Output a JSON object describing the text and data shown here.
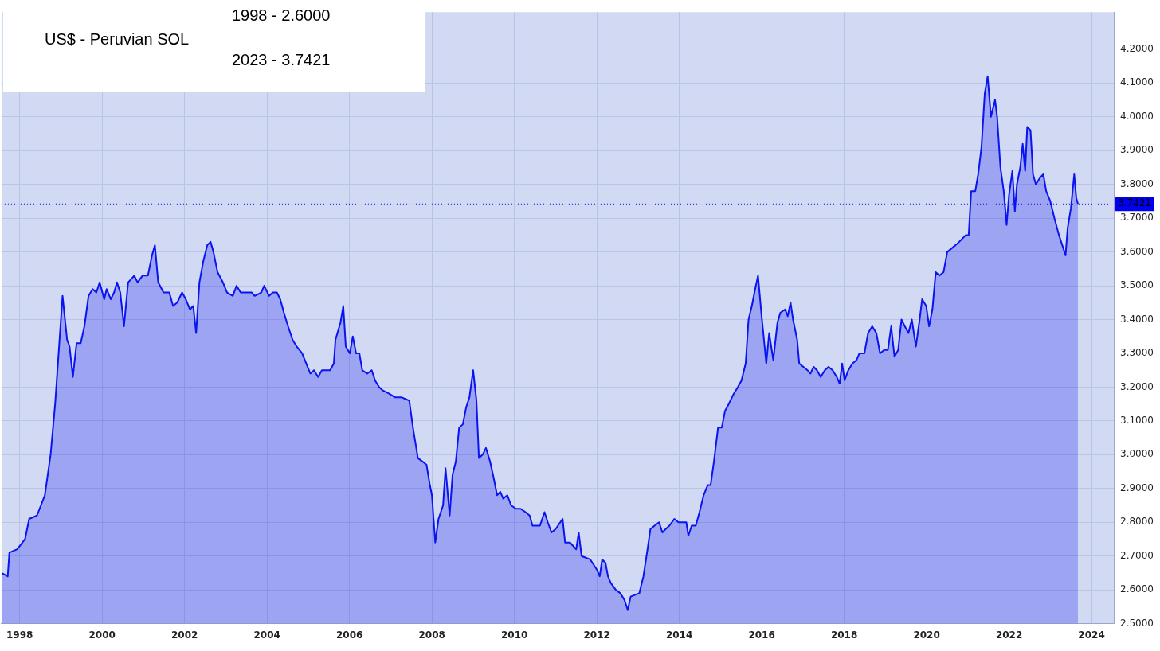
{
  "chart_data": {
    "type": "area",
    "title": "US$ - Peruvian SOL",
    "annotations": [
      "1998 - 2.6000",
      "2023 - 3.7421"
    ],
    "x": [
      1997.56,
      1997.71,
      1997.75,
      1997.94,
      1998.13,
      1998.23,
      1998.42,
      1998.61,
      1998.75,
      1998.86,
      1999.04,
      1999.15,
      1999.21,
      1999.29,
      1999.38,
      1999.48,
      1999.57,
      1999.67,
      1999.77,
      1999.86,
      1999.94,
      2000.05,
      2000.11,
      2000.21,
      2000.29,
      2000.36,
      2000.44,
      2000.53,
      2000.63,
      2000.78,
      2000.86,
      2000.98,
      2001.11,
      2001.21,
      2001.28,
      2001.36,
      2001.49,
      2001.63,
      2001.72,
      2001.82,
      2001.94,
      2002.03,
      2002.13,
      2002.21,
      2002.28,
      2002.36,
      2002.45,
      2002.55,
      2002.63,
      2002.7,
      2002.8,
      2002.93,
      2003.03,
      2003.17,
      2003.26,
      2003.36,
      2003.63,
      2003.7,
      2003.86,
      2003.93,
      2004.05,
      2004.14,
      2004.24,
      2004.32,
      2004.41,
      2004.51,
      2004.62,
      2004.72,
      2004.85,
      2004.95,
      2005.05,
      2005.14,
      2005.24,
      2005.33,
      2005.53,
      2005.62,
      2005.66,
      2005.78,
      2005.85,
      2005.91,
      2006.01,
      2006.08,
      2006.16,
      2006.24,
      2006.31,
      2006.43,
      2006.54,
      2006.62,
      2006.72,
      2006.81,
      2006.97,
      2007.1,
      2007.26,
      2007.45,
      2007.54,
      2007.66,
      2007.77,
      2007.87,
      2007.95,
      2008.0,
      2008.08,
      2008.16,
      2008.27,
      2008.33,
      2008.43,
      2008.5,
      2008.58,
      2008.66,
      2008.75,
      2008.83,
      2008.91,
      2009.0,
      2009.08,
      2009.14,
      2009.23,
      2009.31,
      2009.41,
      2009.5,
      2009.58,
      2009.66,
      2009.73,
      2009.83,
      2009.92,
      2010.04,
      2010.15,
      2010.27,
      2010.37,
      2010.44,
      2010.62,
      2010.73,
      2010.81,
      2010.9,
      2011.0,
      2011.17,
      2011.23,
      2011.35,
      2011.5,
      2011.56,
      2011.63,
      2011.84,
      2012.0,
      2012.07,
      2012.13,
      2012.21,
      2012.27,
      2012.34,
      2012.46,
      2012.57,
      2012.67,
      2012.75,
      2012.82,
      2013.03,
      2013.13,
      2013.23,
      2013.3,
      2013.4,
      2013.51,
      2013.59,
      2013.67,
      2013.76,
      2013.88,
      2013.98,
      2014.17,
      2014.22,
      2014.3,
      2014.4,
      2014.49,
      2014.59,
      2014.69,
      2014.76,
      2014.84,
      2014.94,
      2015.03,
      2015.11,
      2015.2,
      2015.32,
      2015.42,
      2015.51,
      2015.61,
      2015.68,
      2015.76,
      2015.84,
      2015.91,
      2015.99,
      2016.07,
      2016.11,
      2016.18,
      2016.28,
      2016.38,
      2016.45,
      2016.57,
      2016.63,
      2016.7,
      2016.76,
      2016.86,
      2016.91,
      2017.01,
      2017.11,
      2017.18,
      2017.26,
      2017.34,
      2017.43,
      2017.53,
      2017.62,
      2017.72,
      2017.82,
      2017.89,
      2017.95,
      2018.01,
      2018.1,
      2018.2,
      2018.3,
      2018.37,
      2018.49,
      2018.58,
      2018.68,
      2018.78,
      2018.87,
      2018.97,
      2019.06,
      2019.14,
      2019.22,
      2019.31,
      2019.39,
      2019.47,
      2019.56,
      2019.64,
      2019.74,
      2019.83,
      2019.89,
      2019.99,
      2020.06,
      2020.14,
      2020.22,
      2020.31,
      2020.41,
      2020.5,
      2020.6,
      2020.7,
      2020.79,
      2020.87,
      2020.95,
      2021.02,
      2021.08,
      2021.18,
      2021.25,
      2021.33,
      2021.41,
      2021.48,
      2021.56,
      2021.6,
      2021.66,
      2021.71,
      2021.79,
      2021.87,
      2021.94,
      2022.0,
      2022.08,
      2022.14,
      2022.19,
      2022.27,
      2022.33,
      2022.39,
      2022.44,
      2022.52,
      2022.58,
      2022.65,
      2022.75,
      2022.83,
      2022.9,
      2023.0,
      2023.1,
      2023.21,
      2023.29,
      2023.37,
      2023.42,
      2023.5,
      2023.58,
      2023.63,
      2023.67
    ],
    "series": [
      {
        "color": "#0a14f0",
        "values": [
          2.65,
          2.64,
          2.71,
          2.72,
          2.75,
          2.81,
          2.82,
          2.88,
          3.0,
          3.15,
          3.47,
          3.34,
          3.32,
          3.23,
          3.33,
          3.33,
          3.38,
          3.47,
          3.49,
          3.48,
          3.51,
          3.46,
          3.49,
          3.46,
          3.48,
          3.51,
          3.48,
          3.38,
          3.51,
          3.53,
          3.51,
          3.53,
          3.53,
          3.59,
          3.62,
          3.51,
          3.48,
          3.48,
          3.44,
          3.45,
          3.48,
          3.46,
          3.43,
          3.44,
          3.36,
          3.51,
          3.57,
          3.62,
          3.63,
          3.6,
          3.54,
          3.51,
          3.48,
          3.47,
          3.5,
          3.48,
          3.48,
          3.47,
          3.48,
          3.5,
          3.47,
          3.48,
          3.48,
          3.46,
          3.42,
          3.38,
          3.34,
          3.32,
          3.3,
          3.27,
          3.24,
          3.25,
          3.23,
          3.25,
          3.25,
          3.27,
          3.34,
          3.39,
          3.44,
          3.32,
          3.3,
          3.35,
          3.3,
          3.3,
          3.25,
          3.24,
          3.25,
          3.22,
          3.2,
          3.19,
          3.18,
          3.17,
          3.17,
          3.16,
          3.08,
          2.99,
          2.98,
          2.97,
          2.91,
          2.88,
          2.74,
          2.81,
          2.85,
          2.96,
          2.82,
          2.94,
          2.98,
          3.08,
          3.09,
          3.14,
          3.17,
          3.25,
          3.16,
          2.99,
          3.0,
          3.02,
          2.98,
          2.93,
          2.88,
          2.89,
          2.87,
          2.88,
          2.85,
          2.84,
          2.84,
          2.83,
          2.82,
          2.79,
          2.79,
          2.83,
          2.8,
          2.77,
          2.78,
          2.81,
          2.74,
          2.74,
          2.72,
          2.77,
          2.7,
          2.69,
          2.66,
          2.64,
          2.69,
          2.68,
          2.64,
          2.62,
          2.6,
          2.59,
          2.57,
          2.54,
          2.58,
          2.59,
          2.64,
          2.72,
          2.78,
          2.79,
          2.8,
          2.77,
          2.78,
          2.79,
          2.81,
          2.8,
          2.8,
          2.76,
          2.79,
          2.79,
          2.83,
          2.88,
          2.91,
          2.91,
          2.98,
          3.08,
          3.08,
          3.13,
          3.15,
          3.18,
          3.2,
          3.22,
          3.27,
          3.4,
          3.44,
          3.49,
          3.53,
          3.42,
          3.32,
          3.27,
          3.36,
          3.28,
          3.39,
          3.42,
          3.43,
          3.41,
          3.45,
          3.4,
          3.34,
          3.27,
          3.26,
          3.25,
          3.24,
          3.26,
          3.25,
          3.23,
          3.25,
          3.26,
          3.25,
          3.23,
          3.21,
          3.27,
          3.22,
          3.25,
          3.27,
          3.28,
          3.3,
          3.3,
          3.36,
          3.38,
          3.36,
          3.3,
          3.31,
          3.31,
          3.38,
          3.29,
          3.31,
          3.4,
          3.38,
          3.36,
          3.4,
          3.32,
          3.4,
          3.46,
          3.44,
          3.38,
          3.43,
          3.54,
          3.53,
          3.54,
          3.6,
          3.61,
          3.62,
          3.63,
          3.64,
          3.65,
          3.65,
          3.78,
          3.78,
          3.83,
          3.91,
          4.07,
          4.12,
          4.0,
          4.02,
          4.05,
          4.0,
          3.85,
          3.78,
          3.68,
          3.77,
          3.84,
          3.72,
          3.8,
          3.85,
          3.92,
          3.84,
          3.97,
          3.96,
          3.83,
          3.8,
          3.82,
          3.83,
          3.78,
          3.75,
          3.7,
          3.65,
          3.62,
          3.59,
          3.67,
          3.73,
          3.83,
          3.76,
          3.7421
        ]
      }
    ],
    "xlim": [
      1997.56,
      2024.54
    ],
    "xticks": [
      1998,
      2000,
      2002,
      2004,
      2006,
      2008,
      2010,
      2012,
      2014,
      2016,
      2018,
      2020,
      2022,
      2024
    ],
    "ylim": [
      2.5,
      4.31
    ],
    "yticks": [
      {
        "value": 2.5,
        "label": "2.5000"
      },
      {
        "value": 2.6,
        "label": "2.6000"
      },
      {
        "value": 2.7,
        "label": "2.7000"
      },
      {
        "value": 2.8,
        "label": "2.8000"
      },
      {
        "value": 2.9,
        "label": "2.9000"
      },
      {
        "value": 3.0,
        "label": "3.0000"
      },
      {
        "value": 3.1,
        "label": "3.1000"
      },
      {
        "value": 3.2,
        "label": "3.2000"
      },
      {
        "value": 3.3,
        "label": "3.3000"
      },
      {
        "value": 3.4,
        "label": "3.4000"
      },
      {
        "value": 3.5,
        "label": "3.5000"
      },
      {
        "value": 3.6,
        "label": "3.6000"
      },
      {
        "value": 3.7,
        "label": "3.7000"
      },
      {
        "value": 3.8,
        "label": "3.8000"
      },
      {
        "value": 3.9,
        "label": "3.9000"
      },
      {
        "value": 4.0,
        "label": "4.0000"
      },
      {
        "value": 4.1,
        "label": "4.1000"
      },
      {
        "value": 4.2,
        "label": "4.2000"
      }
    ],
    "ref_lines": [
      {
        "axis": "y",
        "value": 3.7421,
        "label": "3.7421",
        "color": "#0000ee",
        "line_style": "dotted"
      }
    ],
    "grid": true,
    "legend": false,
    "marker": "none",
    "line_style": "solid"
  }
}
